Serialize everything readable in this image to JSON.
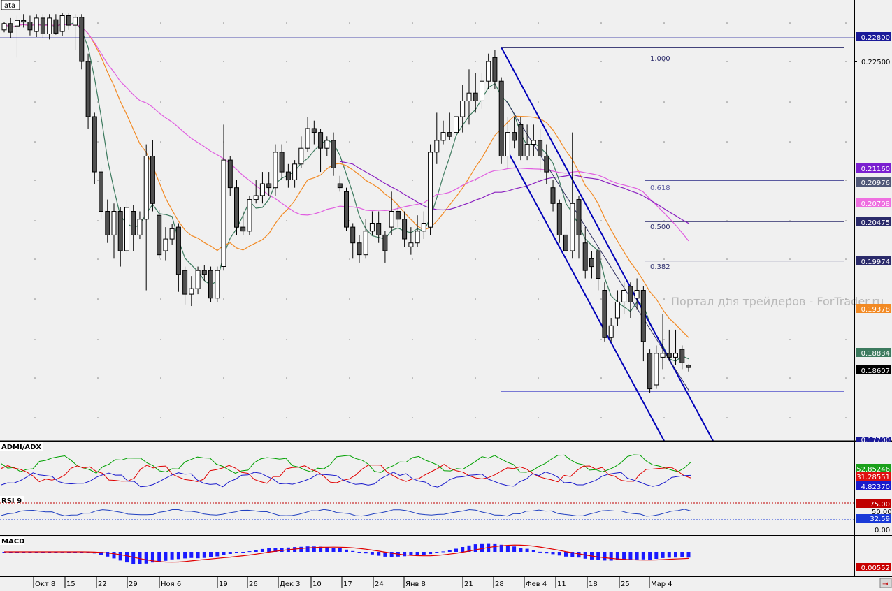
{
  "symbol_label": "ata",
  "watermark": "Портал для трейдеров - ForTrader.ru",
  "colors": {
    "background": "#f0f0f0",
    "bull_candle": "#ffffff",
    "bear_candle": "#505050",
    "hline": "#1a1a99",
    "channel": "#0000b8",
    "sma_fast": "#3c7a5e",
    "sma_mid": "#f28a24",
    "sma_slow_purple": "#8a1fc0",
    "sma_slow_pink": "#e05ee0",
    "rsi_line": "#2040c0",
    "rsi_level": "#c00000",
    "macd_hist": "#1a1aff",
    "macd_signal": "#e00000",
    "dmi_plus": "#00a000",
    "dmi_minus": "#e00000",
    "adx": "#1a1acc"
  },
  "fib_labels": [
    "1.000",
    "0.618",
    "0.500",
    "0.382"
  ],
  "price_axis": {
    "levels": [
      "0.22500",
      "0.17700"
    ],
    "tags": [
      {
        "text": "0.22800",
        "bg": "#1a1a99",
        "fg": "#ffffff"
      },
      {
        "text": "0.21160",
        "bg": "#7b1fd0",
        "fg": "#ffffff"
      },
      {
        "text": "0.20976",
        "bg": "#505878",
        "fg": "#ffffff"
      },
      {
        "text": "0.20708",
        "bg": "#ee6ee0",
        "fg": "#ffffff"
      },
      {
        "text": "0.20475",
        "bg": "#2a2a6a",
        "fg": "#ffffff"
      },
      {
        "text": "0.19974",
        "bg": "#2a2a6a",
        "fg": "#ffffff"
      },
      {
        "text": "0.19378",
        "bg": "#f28a24",
        "fg": "#ffffff"
      },
      {
        "text": "0.18834",
        "bg": "#3c7a5e",
        "fg": "#ffffff"
      },
      {
        "text": "0.18607",
        "bg": "#000000",
        "fg": "#ffffff"
      }
    ]
  },
  "dmi": {
    "title": "ADMI/ADX",
    "tags": [
      {
        "text": "52.85246",
        "bg": "#1aa01a",
        "fg": "#ffffff"
      },
      {
        "text": "31.28551",
        "bg": "#e01010",
        "fg": "#ffffff"
      },
      {
        "text": "4.82370",
        "bg": "#1a1acc",
        "fg": "#ffffff"
      }
    ]
  },
  "rsi": {
    "title": "RSI 9",
    "levels": [
      "75.00",
      "50.00",
      "0.00"
    ],
    "tags": [
      {
        "text": "75.00",
        "bg": "#c00000",
        "fg": "#ffffff"
      },
      {
        "text": "32.59",
        "bg": "#1a3ad8",
        "fg": "#ffffff"
      }
    ]
  },
  "macd": {
    "title": "MACD",
    "tags": [
      {
        "text": "0.00552",
        "bg": "#c80000",
        "fg": "#ffffff"
      }
    ]
  },
  "time_axis": [
    "Окт 8",
    "15",
    "22",
    "29",
    "Ноя 6",
    "19",
    "26",
    "Дек 3",
    "10",
    "17",
    "24",
    "Янв 8",
    "21",
    "28",
    "Фев 4",
    "11",
    "18",
    "25",
    "Мар 4"
  ],
  "chart_data": {
    "type": "candlestick",
    "y_range": [
      0.177,
      0.232
    ],
    "horizontal_levels": [
      0.228,
      0.2268,
      0.1832
    ],
    "fibonacci": [
      {
        "level": "1.000",
        "price": 0.2268
      },
      {
        "level": "0.618",
        "price": 0.2099
      },
      {
        "level": "0.500",
        "price": 0.2047
      },
      {
        "level": "0.382",
        "price": 0.1997
      }
    ],
    "last_price": 0.18607,
    "candles": [
      [
        0.229,
        0.2298,
        0.23,
        0.2287
      ],
      [
        0.2298,
        0.2287,
        0.2305,
        0.228
      ],
      [
        0.2295,
        0.2302,
        0.2308,
        0.2255
      ],
      [
        0.2302,
        0.23,
        0.231,
        0.2293
      ],
      [
        0.23,
        0.229,
        0.2308,
        0.2283
      ],
      [
        0.2288,
        0.2305,
        0.231,
        0.2281
      ],
      [
        0.2305,
        0.2285,
        0.231,
        0.228
      ],
      [
        0.2285,
        0.2305,
        0.231,
        0.2278
      ],
      [
        0.2303,
        0.2286,
        0.231,
        0.2284
      ],
      [
        0.2288,
        0.2308,
        0.2312,
        0.2282
      ],
      [
        0.2308,
        0.2296,
        0.2312,
        0.229
      ],
      [
        0.2296,
        0.2306,
        0.231,
        0.2265
      ],
      [
        0.2306,
        0.225,
        0.231,
        0.224
      ],
      [
        0.225,
        0.218,
        0.226,
        0.2165
      ],
      [
        0.218,
        0.211,
        0.2185,
        0.2095
      ],
      [
        0.211,
        0.206,
        0.2115,
        0.205
      ],
      [
        0.206,
        0.203,
        0.2075,
        0.202
      ],
      [
        0.203,
        0.206,
        0.207,
        0.2
      ],
      [
        0.206,
        0.201,
        0.2065,
        0.199
      ],
      [
        0.201,
        0.2065,
        0.2075,
        0.2005
      ],
      [
        0.206,
        0.203,
        0.2068,
        0.201
      ],
      [
        0.203,
        0.205,
        0.206,
        0.2025
      ],
      [
        0.205,
        0.213,
        0.2145,
        0.196
      ],
      [
        0.213,
        0.207,
        0.215,
        0.206
      ],
      [
        0.2055,
        0.2005,
        0.2062,
        0.2
      ],
      [
        0.201,
        0.2025,
        0.204,
        0.1998
      ],
      [
        0.2025,
        0.2038,
        0.2044,
        0.2018
      ],
      [
        0.204,
        0.198,
        0.2045,
        0.1958
      ],
      [
        0.1985,
        0.1955,
        0.199,
        0.1942
      ],
      [
        0.1955,
        0.1962,
        0.1978,
        0.194
      ],
      [
        0.1962,
        0.1985,
        0.199,
        0.1955
      ],
      [
        0.1985,
        0.198,
        0.1992,
        0.1972
      ],
      [
        0.1985,
        0.195,
        0.199,
        0.1945
      ],
      [
        0.195,
        0.1985,
        0.199,
        0.1945
      ],
      [
        0.199,
        0.2125,
        0.217,
        0.1985
      ],
      [
        0.2125,
        0.209,
        0.213,
        0.208
      ],
      [
        0.209,
        0.204,
        0.21,
        0.203
      ],
      [
        0.204,
        0.2035,
        0.206,
        0.203
      ],
      [
        0.2035,
        0.2075,
        0.208,
        0.203
      ],
      [
        0.2075,
        0.208,
        0.21,
        0.207
      ],
      [
        0.208,
        0.2095,
        0.211,
        0.207
      ],
      [
        0.2095,
        0.209,
        0.211,
        0.208
      ],
      [
        0.209,
        0.2135,
        0.2145,
        0.208
      ],
      [
        0.2135,
        0.211,
        0.2145,
        0.21
      ],
      [
        0.211,
        0.21,
        0.212,
        0.209
      ],
      [
        0.21,
        0.212,
        0.2125,
        0.209
      ],
      [
        0.212,
        0.214,
        0.2155,
        0.2115
      ],
      [
        0.214,
        0.2165,
        0.218,
        0.2135
      ],
      [
        0.2165,
        0.216,
        0.2175,
        0.2145
      ],
      [
        0.216,
        0.214,
        0.2165,
        0.211
      ],
      [
        0.214,
        0.215,
        0.2155,
        0.213
      ],
      [
        0.215,
        0.2115,
        0.216,
        0.2105
      ],
      [
        0.2095,
        0.209,
        0.2105,
        0.2085
      ],
      [
        0.2085,
        0.204,
        0.209,
        0.2035
      ],
      [
        0.204,
        0.202,
        0.2045,
        0.2
      ],
      [
        0.202,
        0.2005,
        0.203,
        0.1995
      ],
      [
        0.2005,
        0.2035,
        0.205,
        0.2
      ],
      [
        0.2035,
        0.2045,
        0.206,
        0.203
      ],
      [
        0.2045,
        0.203,
        0.206,
        0.202
      ],
      [
        0.203,
        0.201,
        0.2035,
        0.1995
      ],
      [
        0.204,
        0.206,
        0.2085,
        0.203
      ],
      [
        0.206,
        0.205,
        0.207,
        0.204
      ],
      [
        0.205,
        0.2025,
        0.206,
        0.2015
      ],
      [
        0.2015,
        0.202,
        0.204,
        0.2005
      ],
      [
        0.202,
        0.2035,
        0.2055,
        0.2015
      ],
      [
        0.2035,
        0.2045,
        0.206,
        0.2025
      ],
      [
        0.204,
        0.2135,
        0.2145,
        0.203
      ],
      [
        0.2135,
        0.215,
        0.2185,
        0.212
      ],
      [
        0.215,
        0.216,
        0.2175,
        0.2145
      ],
      [
        0.216,
        0.2155,
        0.2185,
        0.215
      ],
      [
        0.216,
        0.218,
        0.2185,
        0.2105
      ],
      [
        0.218,
        0.22,
        0.222,
        0.216
      ],
      [
        0.22,
        0.221,
        0.224,
        0.217
      ],
      [
        0.221,
        0.22,
        0.2235,
        0.2185
      ],
      [
        0.22,
        0.2225,
        0.2235,
        0.219
      ],
      [
        0.2225,
        0.225,
        0.226,
        0.2215
      ],
      [
        0.2255,
        0.2225,
        0.2265,
        0.2215
      ],
      [
        0.2225,
        0.213,
        0.223,
        0.212
      ],
      [
        0.213,
        0.216,
        0.218,
        0.2115
      ],
      [
        0.216,
        0.215,
        0.218,
        0.214
      ],
      [
        0.217,
        0.213,
        0.218,
        0.2125
      ],
      [
        0.213,
        0.2145,
        0.217,
        0.2125
      ],
      [
        0.2145,
        0.215,
        0.217,
        0.213
      ],
      [
        0.215,
        0.213,
        0.2165,
        0.211
      ],
      [
        0.213,
        0.211,
        0.2145,
        0.2095
      ],
      [
        0.209,
        0.207,
        0.21,
        0.206
      ],
      [
        0.207,
        0.203,
        0.2075,
        0.202
      ],
      [
        0.203,
        0.201,
        0.204,
        0.2
      ],
      [
        0.201,
        0.207,
        0.216,
        0.2
      ],
      [
        0.2075,
        0.203,
        0.208,
        0.2
      ],
      [
        0.202,
        0.1985,
        0.204,
        0.1975
      ],
      [
        0.2,
        0.199,
        0.201,
        0.1975
      ],
      [
        0.201,
        0.1975,
        0.2015,
        0.196
      ],
      [
        0.196,
        0.19,
        0.197,
        0.1895
      ],
      [
        0.19,
        0.1915,
        0.1925,
        0.1895
      ],
      [
        0.1925,
        0.1945,
        0.196,
        0.1915
      ],
      [
        0.1945,
        0.196,
        0.197,
        0.193
      ],
      [
        0.1965,
        0.1945,
        0.197,
        0.1925
      ],
      [
        0.195,
        0.196,
        0.1975,
        0.1935
      ],
      [
        0.196,
        0.1895,
        0.1965,
        0.187
      ],
      [
        0.188,
        0.1835,
        0.1885,
        0.183
      ],
      [
        0.184,
        0.188,
        0.189,
        0.1835
      ],
      [
        0.1875,
        0.188,
        0.193,
        0.186
      ],
      [
        0.188,
        0.1875,
        0.191,
        0.187
      ],
      [
        0.1875,
        0.188,
        0.191,
        0.1865
      ],
      [
        0.1885,
        0.1868,
        0.189,
        0.186
      ],
      [
        0.1865,
        0.1862,
        0.1866,
        0.1857
      ]
    ]
  }
}
